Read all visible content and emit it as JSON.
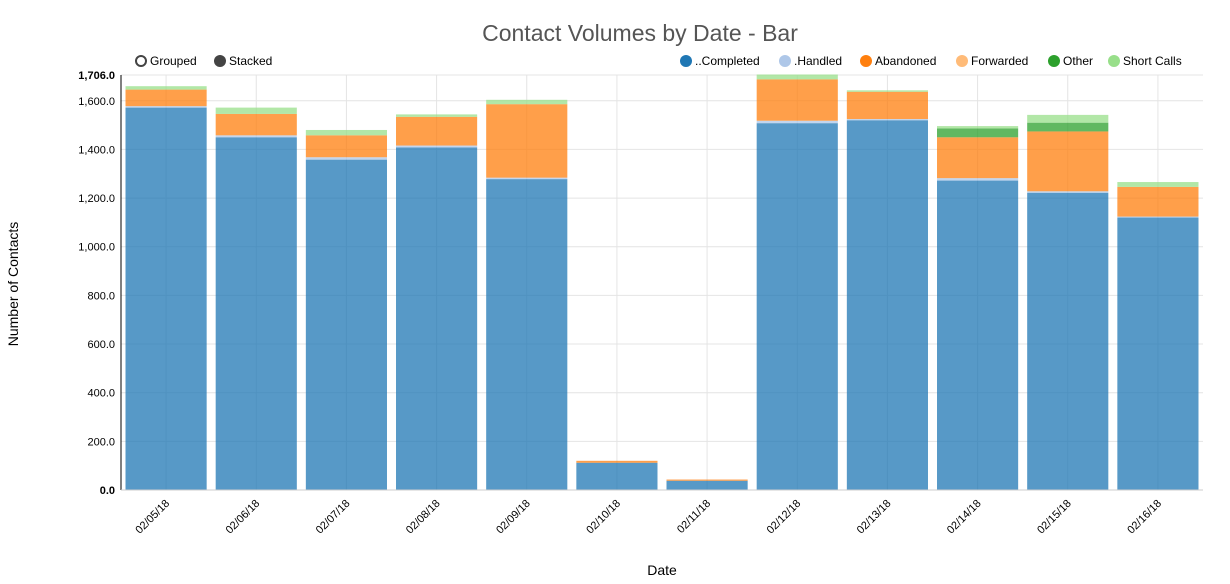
{
  "chart_data": {
    "type": "bar",
    "title": "Contact Volumes by Date - Bar",
    "xlabel": "Date",
    "ylabel": "Number of Contacts",
    "stacked": true,
    "ylim": [
      0,
      1706
    ],
    "yticks": [
      "0.0",
      "200.0",
      "400.0",
      "600.0",
      "800.0",
      "1,000.0",
      "1,200.0",
      "1,400.0",
      "1,600.0",
      "1,706.0"
    ],
    "ytick_values": [
      0,
      200,
      400,
      600,
      800,
      1000,
      1200,
      1400,
      1600,
      1706
    ],
    "categories": [
      "02/05/18",
      "02/06/18",
      "02/07/18",
      "02/08/18",
      "02/09/18",
      "02/10/18",
      "02/11/18",
      "02/12/18",
      "02/13/18",
      "02/14/18",
      "02/15/18",
      "02/16/18"
    ],
    "series": [
      {
        "name": "..Completed",
        "color": "#1f77b4",
        "values": [
          1572,
          1450,
          1358,
          1408,
          1278,
          112,
          38,
          1508,
          1520,
          1272,
          1222,
          1120
        ]
      },
      {
        "name": ".Handled",
        "color": "#aec7e8",
        "values": [
          6,
          8,
          10,
          8,
          6,
          0,
          0,
          10,
          5,
          10,
          6,
          4
        ]
      },
      {
        "name": "Abandoned",
        "color": "#ff7f0e",
        "values": [
          68,
          88,
          90,
          118,
          302,
          8,
          5,
          170,
          112,
          168,
          246,
          122
        ]
      },
      {
        "name": "Forwarded",
        "color": "#ffbb78",
        "values": [
          0,
          0,
          0,
          0,
          0,
          0,
          0,
          0,
          0,
          0,
          0,
          0
        ]
      },
      {
        "name": "Other",
        "color": "#2ca02c",
        "values": [
          0,
          0,
          0,
          0,
          0,
          0,
          0,
          0,
          0,
          36,
          36,
          0
        ]
      },
      {
        "name": "Short Calls",
        "color": "#98df8a",
        "values": [
          14,
          26,
          22,
          10,
          18,
          0,
          0,
          20,
          6,
          10,
          32,
          20
        ]
      }
    ],
    "grid": true,
    "legend_position": "top-right"
  },
  "controls": {
    "grouped_label": "Grouped",
    "stacked_label": "Stacked",
    "selected": "Stacked"
  }
}
